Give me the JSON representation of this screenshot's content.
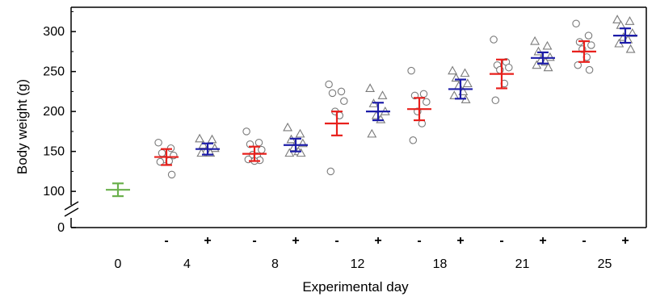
{
  "chart_data": {
    "type": "scatter",
    "title": "",
    "xlabel": "Experimental day",
    "ylabel": "Body weight (g)",
    "ylim": [
      0,
      320
    ],
    "y_axis_break": [
      0,
      85
    ],
    "y_ticks": [
      0,
      100,
      150,
      200,
      250,
      300
    ],
    "y_tick_labels": [
      "0",
      "100",
      "150",
      "200",
      "250",
      "300"
    ],
    "treatment_labels": {
      "without": "-",
      "with": "+"
    },
    "colors": {
      "baseline": "#6ab04c",
      "without": "#e8201c",
      "with": "#1c1ca8",
      "marker": "#7a7a7a"
    },
    "markers": {
      "without": "circle",
      "with": "triangle"
    },
    "groups": [
      {
        "day": "0",
        "treatment": "",
        "mean": 102,
        "err": 8,
        "points": []
      },
      {
        "day": "4",
        "treatment": "-",
        "mean": 143,
        "err": 10,
        "points": [
          161,
          154,
          148,
          145,
          140,
          138,
          137,
          121
        ]
      },
      {
        "day": "4",
        "treatment": "+",
        "mean": 153,
        "err": 7,
        "points": [
          166,
          165,
          158,
          154,
          150,
          148,
          148
        ]
      },
      {
        "day": "8",
        "treatment": "-",
        "mean": 147,
        "err": 9,
        "points": [
          175,
          161,
          159,
          152,
          146,
          144,
          140,
          139,
          138
        ]
      },
      {
        "day": "8",
        "treatment": "+",
        "mean": 158,
        "err": 8,
        "points": [
          180,
          172,
          165,
          160,
          155,
          150,
          148,
          148
        ]
      },
      {
        "day": "12",
        "treatment": "-",
        "mean": 185,
        "err": 15,
        "points": [
          234,
          225,
          223,
          213,
          200,
          195,
          125
        ]
      },
      {
        "day": "12",
        "treatment": "+",
        "mean": 200,
        "err": 11,
        "points": [
          229,
          220,
          210,
          200,
          195,
          190,
          172
        ]
      },
      {
        "day": "18",
        "treatment": "-",
        "mean": 203,
        "err": 14,
        "points": [
          251,
          222,
          220,
          212,
          200,
          185,
          164
        ]
      },
      {
        "day": "18",
        "treatment": "+",
        "mean": 228,
        "err": 12,
        "points": [
          251,
          248,
          242,
          235,
          232,
          225,
          220,
          215
        ]
      },
      {
        "day": "21",
        "treatment": "-",
        "mean": 247,
        "err": 18,
        "points": [
          290,
          262,
          258,
          255,
          252,
          235,
          214
        ]
      },
      {
        "day": "21",
        "treatment": "+",
        "mean": 267,
        "err": 7,
        "points": [
          288,
          282,
          275,
          268,
          265,
          262,
          258,
          255
        ]
      },
      {
        "day": "25",
        "treatment": "-",
        "mean": 275,
        "err": 13,
        "points": [
          310,
          295,
          287,
          283,
          278,
          268,
          258,
          252
        ]
      },
      {
        "day": "25",
        "treatment": "+",
        "mean": 295,
        "err": 9,
        "points": [
          315,
          313,
          308,
          298,
          293,
          290,
          285,
          278
        ]
      }
    ]
  }
}
